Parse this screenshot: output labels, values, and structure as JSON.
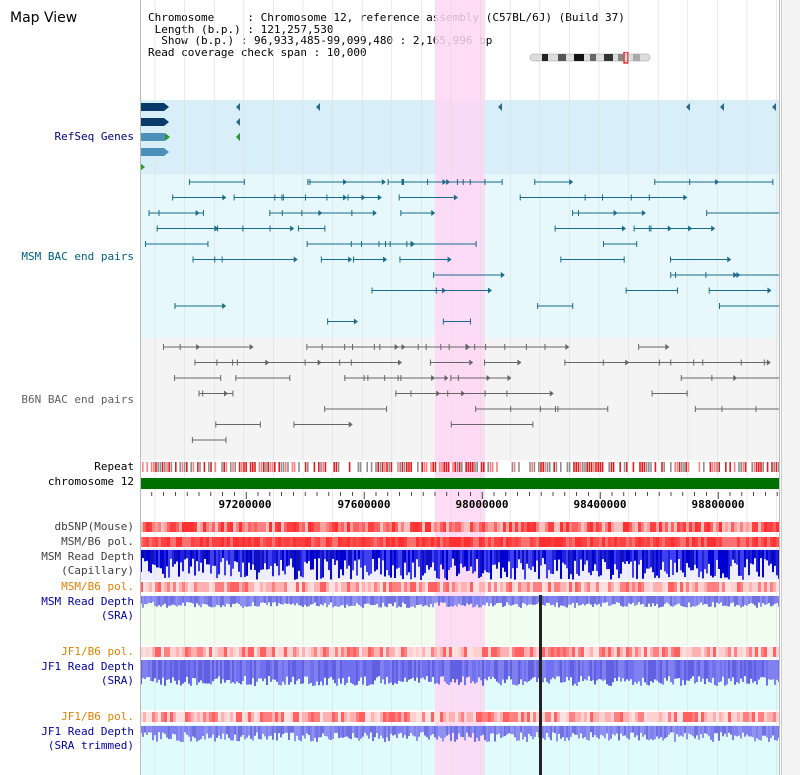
{
  "app": {
    "title": "Map View"
  },
  "info": {
    "chromosome_label": "Chromosome",
    "chromosome_value": "Chromosome 12, reference assembly (C57BL/6J) (Build 37)",
    "length_label": "Length (b.p.)",
    "length_value": "121,257,530",
    "show_label": "Show (b.p.)",
    "show_value": "96,933,485-99,099,480 : 2,165,996 bp",
    "coverage_label": "Read coverage check span",
    "coverage_value": "10,000"
  },
  "tracks": {
    "refseq": "RefSeq Genes",
    "msm_bac": "MSM BAC end pairs",
    "b6n_bac": "B6N BAC end pairs",
    "repeat": "Repeat",
    "chromosome": "chromosome 12",
    "dbsnp": "dbSNP(Mouse)",
    "msm_b6_pol_1": "MSM/B6 pol.",
    "msm_read_depth_cap": "MSM Read Depth\n(Capillary)",
    "msm_b6_pol_2": "MSM/B6 pol.",
    "msm_read_depth_sra": "MSM Read Depth\n(SRA)",
    "jf1_b6_pol_1": "JF1/B6 pol.",
    "jf1_read_depth_sra": "JF1 Read Depth\n(SRA)",
    "jf1_b6_pol_2": "JF1/B6 pol.",
    "jf1_read_depth_trim": "JF1 Read Depth\n(SRA trimmed)"
  },
  "axis": {
    "ticks": [
      "97200000",
      "97600000",
      "98000000",
      "98400000",
      "98800000"
    ]
  },
  "colors": {
    "refseq_label": "#000080",
    "msm_label": "#006080",
    "b6n_label": "#606060",
    "pol_orange": "#e08000",
    "read_depth_blue": "#0000a0",
    "highlight": "#ffd6f5",
    "chromosome_bar": "#007000"
  }
}
